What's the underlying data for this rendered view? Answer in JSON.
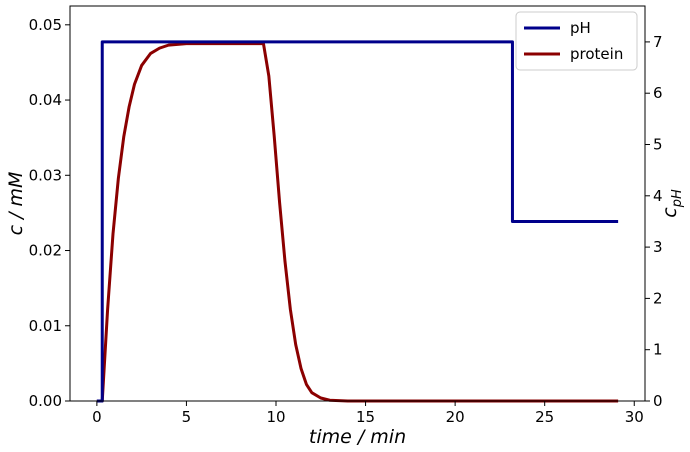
{
  "chart_data": {
    "type": "line",
    "xlabel": "time / min",
    "ylabel_left": "c / mM",
    "ylabel_right_base": "c",
    "ylabel_right_sub": "pH",
    "xlim": [
      -1.5,
      30.6
    ],
    "ylim_left": [
      0.0,
      0.0525
    ],
    "ylim_right": [
      0.0,
      7.7
    ],
    "x_ticks": [
      0,
      5,
      10,
      15,
      20,
      25,
      30
    ],
    "x_tick_labels": [
      "0",
      "5",
      "10",
      "15",
      "20",
      "25",
      "30"
    ],
    "y_left_ticks": [
      0.0,
      0.01,
      0.02,
      0.03,
      0.04,
      0.05
    ],
    "y_left_tick_labels": [
      "0.00",
      "0.01",
      "0.02",
      "0.03",
      "0.04",
      "0.05"
    ],
    "y_right_ticks": [
      0,
      1,
      2,
      3,
      4,
      5,
      6,
      7
    ],
    "y_right_tick_labels": [
      "0",
      "1",
      "2",
      "3",
      "4",
      "5",
      "6",
      "7"
    ],
    "legend_position": "top-right",
    "series": [
      {
        "name": "pH",
        "axis": "right",
        "color": "#00008b",
        "x": [
          0.0,
          0.3,
          0.3,
          23.2,
          23.2,
          29.1
        ],
        "y": [
          0.0,
          0.0,
          7.0,
          7.0,
          3.5,
          3.5
        ]
      },
      {
        "name": "protein",
        "axis": "left",
        "color": "#8b0000",
        "x": [
          0.0,
          0.3,
          0.6,
          0.9,
          1.2,
          1.5,
          1.8,
          2.1,
          2.5,
          3.0,
          3.5,
          4.0,
          5.0,
          6.0,
          7.0,
          8.0,
          9.0,
          9.3,
          9.6,
          9.9,
          10.2,
          10.5,
          10.8,
          11.1,
          11.4,
          11.7,
          12.0,
          12.5,
          13.0,
          14.0,
          16.0,
          20.0,
          25.0,
          29.1
        ],
        "y": [
          0.0,
          0.0,
          0.0122,
          0.0222,
          0.0296,
          0.0351,
          0.0391,
          0.0421,
          0.0446,
          0.0462,
          0.0469,
          0.0473,
          0.0475,
          0.0475,
          0.0475,
          0.0475,
          0.0475,
          0.0475,
          0.0432,
          0.0352,
          0.0264,
          0.0186,
          0.0122,
          0.0075,
          0.0043,
          0.0022,
          0.0011,
          0.0004,
          0.0001,
          0.0,
          0.0,
          0.0,
          0.0,
          0.0
        ]
      }
    ]
  }
}
